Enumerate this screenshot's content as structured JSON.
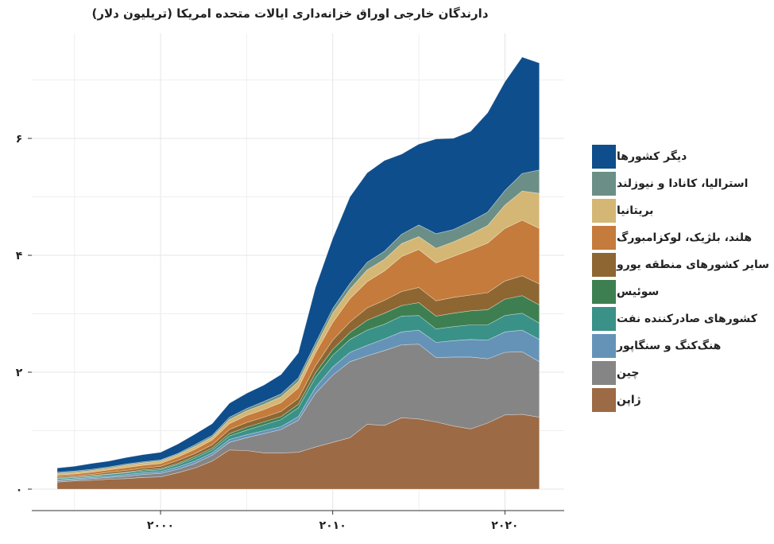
{
  "chart_data": {
    "type": "area",
    "stacked": true,
    "title": "دارندگان خارجی اوراق خزانه‌داری ایالات متحده امریکا (تریلیون دلار)",
    "xlabel": "",
    "ylabel": "",
    "xlim": [
      1994,
      2025
    ],
    "ylim": [
      0,
      7.5
    ],
    "x_ticks": [
      2000,
      2010,
      2020
    ],
    "x_tick_labels": [
      "۲۰۰۰",
      "۲۰۱۰",
      "۲۰۲۰"
    ],
    "y_ticks": [
      0,
      2,
      4,
      6
    ],
    "y_tick_labels": [
      "۰",
      "۲",
      "۴",
      "۶"
    ],
    "grid": true,
    "legend_position": "right",
    "x": [
      1994,
      1995,
      1996,
      1997,
      1998,
      1999,
      2000,
      2001,
      2002,
      2003,
      2004,
      2005,
      2006,
      2007,
      2008,
      2009,
      2010,
      2011,
      2012,
      2013,
      2014,
      2015,
      2016,
      2017,
      2018,
      2019,
      2020,
      2021,
      2022
    ],
    "series": [
      {
        "name": "ژاپن",
        "color": "#9c6a45",
        "values": [
          0.12,
          0.14,
          0.15,
          0.17,
          0.18,
          0.2,
          0.21,
          0.28,
          0.36,
          0.48,
          0.67,
          0.66,
          0.62,
          0.62,
          0.63,
          0.72,
          0.8,
          0.88,
          1.11,
          1.09,
          1.22,
          1.2,
          1.15,
          1.08,
          1.03,
          1.13,
          1.27,
          1.28,
          1.23
        ]
      },
      {
        "name": "چین",
        "color": "#858585",
        "values": [
          0.02,
          0.02,
          0.03,
          0.03,
          0.04,
          0.05,
          0.06,
          0.06,
          0.08,
          0.1,
          0.13,
          0.22,
          0.33,
          0.4,
          0.55,
          0.92,
          1.15,
          1.3,
          1.17,
          1.28,
          1.25,
          1.28,
          1.1,
          1.18,
          1.23,
          1.1,
          1.07,
          1.07,
          0.95
        ]
      },
      {
        "name": "هنگ‌کنگ و سنگاپور",
        "color": "#6593b8",
        "values": [
          0.02,
          0.02,
          0.02,
          0.02,
          0.03,
          0.03,
          0.03,
          0.04,
          0.04,
          0.04,
          0.05,
          0.05,
          0.05,
          0.05,
          0.06,
          0.1,
          0.14,
          0.16,
          0.18,
          0.2,
          0.22,
          0.24,
          0.26,
          0.28,
          0.3,
          0.32,
          0.35,
          0.37,
          0.38
        ]
      },
      {
        "name": "کشورهای صادرکننده نفت",
        "color": "#3a9188",
        "values": [
          0.02,
          0.02,
          0.02,
          0.03,
          0.03,
          0.03,
          0.03,
          0.04,
          0.05,
          0.05,
          0.06,
          0.08,
          0.1,
          0.12,
          0.15,
          0.17,
          0.2,
          0.22,
          0.26,
          0.25,
          0.27,
          0.25,
          0.23,
          0.24,
          0.25,
          0.26,
          0.28,
          0.29,
          0.28
        ]
      },
      {
        "name": "سوئیس",
        "color": "#3e7f52",
        "values": [
          0.01,
          0.01,
          0.01,
          0.01,
          0.01,
          0.02,
          0.02,
          0.02,
          0.03,
          0.03,
          0.04,
          0.05,
          0.05,
          0.05,
          0.06,
          0.08,
          0.1,
          0.12,
          0.17,
          0.19,
          0.18,
          0.22,
          0.22,
          0.23,
          0.24,
          0.26,
          0.28,
          0.3,
          0.31
        ]
      },
      {
        "name": "سایر کشورهای منطقه یورو",
        "color": "#8e6632",
        "values": [
          0.02,
          0.02,
          0.02,
          0.03,
          0.03,
          0.03,
          0.04,
          0.05,
          0.05,
          0.06,
          0.07,
          0.08,
          0.08,
          0.09,
          0.1,
          0.12,
          0.16,
          0.18,
          0.21,
          0.22,
          0.24,
          0.26,
          0.26,
          0.27,
          0.27,
          0.29,
          0.31,
          0.34,
          0.36
        ]
      },
      {
        "name": "هلند، بلژیک، لوکزامبورگ",
        "color": "#c57b3b",
        "values": [
          0.03,
          0.03,
          0.04,
          0.04,
          0.05,
          0.05,
          0.05,
          0.06,
          0.07,
          0.08,
          0.1,
          0.12,
          0.13,
          0.15,
          0.18,
          0.22,
          0.3,
          0.4,
          0.45,
          0.5,
          0.6,
          0.65,
          0.65,
          0.7,
          0.77,
          0.85,
          0.9,
          0.95,
          0.95
        ]
      },
      {
        "name": "بریتانیا",
        "color": "#d4b774",
        "values": [
          0.03,
          0.03,
          0.03,
          0.03,
          0.04,
          0.04,
          0.04,
          0.04,
          0.05,
          0.05,
          0.07,
          0.08,
          0.09,
          0.1,
          0.11,
          0.1,
          0.16,
          0.16,
          0.2,
          0.2,
          0.22,
          0.22,
          0.25,
          0.25,
          0.27,
          0.3,
          0.4,
          0.5,
          0.6
        ]
      },
      {
        "name": "استرالیا، کانادا و نیوزلند",
        "color": "#6b8f86",
        "values": [
          0.02,
          0.02,
          0.02,
          0.02,
          0.02,
          0.02,
          0.02,
          0.02,
          0.03,
          0.03,
          0.04,
          0.04,
          0.05,
          0.05,
          0.06,
          0.07,
          0.08,
          0.1,
          0.13,
          0.14,
          0.16,
          0.2,
          0.25,
          0.21,
          0.22,
          0.23,
          0.25,
          0.3,
          0.4
        ]
      },
      {
        "name": "دیگر کشورها",
        "color": "#0f4e8c",
        "values": [
          0.07,
          0.08,
          0.1,
          0.1,
          0.11,
          0.12,
          0.13,
          0.16,
          0.18,
          0.2,
          0.24,
          0.26,
          0.28,
          0.33,
          0.43,
          0.95,
          1.2,
          1.48,
          1.53,
          1.55,
          1.37,
          1.38,
          1.62,
          1.56,
          1.54,
          1.7,
          1.86,
          1.99,
          1.83
        ]
      }
    ]
  }
}
